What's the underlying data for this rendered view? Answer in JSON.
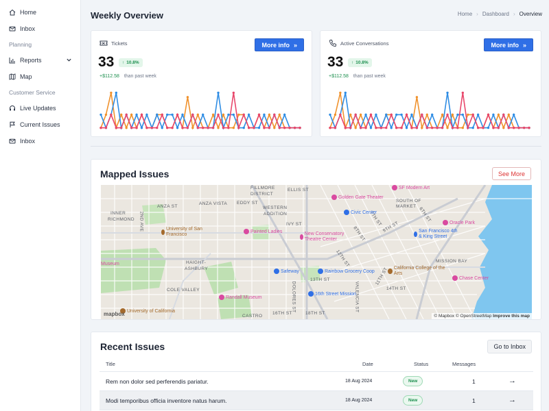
{
  "sidebar": {
    "items": [
      {
        "label": "Home",
        "icon": "home-icon"
      },
      {
        "label": "Inbox",
        "icon": "mail-icon"
      }
    ],
    "section_planning": "Planning",
    "planning_items": [
      {
        "label": "Reports",
        "icon": "chart-icon"
      },
      {
        "label": "Map",
        "icon": "map-icon"
      }
    ],
    "section_customer": "Customer Service",
    "customer_items": [
      {
        "label": "Live Updates",
        "icon": "headset-icon"
      },
      {
        "label": "Current Issues",
        "icon": "flag-icon"
      },
      {
        "label": "Inbox",
        "icon": "mail-icon"
      }
    ]
  },
  "header": {
    "title": "Weekly Overview",
    "breadcrumb": [
      "Home",
      "Dashboard",
      "Overview"
    ]
  },
  "stats": [
    {
      "label": "Tickets",
      "icon": "ticket-icon",
      "button": "More info",
      "value": "33",
      "badge": "10.8%",
      "delta": "+$112.58",
      "delta_suffix": "than past week"
    },
    {
      "label": "Active Conversations",
      "icon": "phone-icon",
      "button": "More info",
      "value": "33",
      "badge": "10.8%",
      "delta": "+$112.58",
      "delta_suffix": "than past week"
    }
  ],
  "chart_data": {
    "type": "line",
    "x": [
      1,
      2,
      3,
      4,
      5,
      6,
      7,
      8,
      9,
      10,
      11,
      12,
      13,
      14,
      15,
      16,
      17,
      18,
      19,
      20,
      21,
      22,
      23,
      24,
      25,
      26,
      27,
      28,
      29,
      30,
      31,
      32,
      33,
      34,
      35,
      36,
      37,
      38,
      39,
      40
    ],
    "ylim": [
      0,
      10
    ],
    "series": [
      {
        "color": "#f0922d",
        "values": [
          1,
          4,
          9,
          1,
          4,
          1,
          4,
          1,
          4,
          1,
          1,
          4,
          4,
          1,
          1,
          4,
          1,
          8,
          1,
          4,
          1,
          1,
          4,
          1,
          4,
          1,
          1,
          4,
          4,
          1,
          1,
          4,
          1,
          4,
          1,
          4,
          1,
          1,
          1,
          1
        ]
      },
      {
        "color": "#2f8de4",
        "values": [
          4,
          1,
          4,
          9,
          1,
          4,
          1,
          4,
          1,
          4,
          1,
          4,
          1,
          4,
          4,
          1,
          4,
          1,
          4,
          1,
          4,
          1,
          1,
          9,
          1,
          4,
          4,
          1,
          1,
          4,
          1,
          1,
          4,
          1,
          4,
          1,
          4,
          1,
          1,
          1
        ]
      },
      {
        "color": "#e8476b",
        "values": [
          1,
          1,
          4,
          1,
          1,
          4,
          1,
          1,
          4,
          1,
          1,
          1,
          4,
          1,
          1,
          4,
          1,
          1,
          4,
          1,
          1,
          1,
          1,
          4,
          1,
          1,
          9,
          1,
          4,
          1,
          1,
          4,
          1,
          1,
          4,
          1,
          1,
          1,
          1,
          1
        ]
      }
    ]
  },
  "map_card": {
    "title": "Mapped Issues",
    "button": "See More",
    "labels": [
      {
        "text": "FILLMORE"
      },
      {
        "text": "DISTRICT"
      },
      {
        "text": "ELLIS ST"
      },
      {
        "text": "ANZA ST"
      },
      {
        "text": "ANZA VISTA"
      },
      {
        "text": "EDDY ST"
      },
      {
        "text": "WESTERN"
      },
      {
        "text": "ADDITION"
      },
      {
        "text": "INNER"
      },
      {
        "text": "RICHMOND"
      },
      {
        "text": "HAIGHT-"
      },
      {
        "text": "ASHBURY"
      },
      {
        "text": "COLE VALLEY"
      },
      {
        "text": "SOUTH OF"
      },
      {
        "text": "MARKET"
      },
      {
        "text": "MISSION BAY"
      },
      {
        "text": "CASTRO"
      },
      {
        "text": "16TH ST"
      },
      {
        "text": "18TH ST"
      },
      {
        "text": "IVY ST"
      },
      {
        "text": "7TH ST"
      },
      {
        "text": "8TH ST"
      },
      {
        "text": "9TH ST"
      },
      {
        "text": "12TH ST"
      },
      {
        "text": "13TH ST"
      },
      {
        "text": "2ND AVE"
      },
      {
        "text": "DOLORES ST"
      },
      {
        "text": "VALENCIA ST"
      },
      {
        "text": "14TH ST"
      },
      {
        "text": "6TH ST"
      },
      {
        "text": "11TH ST"
      }
    ],
    "pois": [
      {
        "text": "Golden Gate Theater",
        "color": "#d94aa0"
      },
      {
        "text": "Civic Center",
        "color": "#2f6fe6"
      },
      {
        "text": "SF Modern Art",
        "color": "#d94aa0"
      },
      {
        "text": "Oracle Park",
        "color": "#d94aa0"
      },
      {
        "text": "San Francisco 4th & King Street",
        "color": "#2f6fe6"
      },
      {
        "text": "University of San Francisco",
        "color": "#a46a2c"
      },
      {
        "text": "Painted Ladies",
        "color": "#d94aa0"
      },
      {
        "text": "New Conservatory Theatre Center",
        "color": "#d94aa0"
      },
      {
        "text": "Safeway",
        "color": "#2f6fe6"
      },
      {
        "text": "Rainbow Grocery Coop",
        "color": "#2f6fe6"
      },
      {
        "text": "California College of the Arts",
        "color": "#a46a2c"
      },
      {
        "text": "Chase Center",
        "color": "#d94aa0"
      },
      {
        "text": "16th Street Mission",
        "color": "#2f6fe6"
      },
      {
        "text": "Randall Museum",
        "color": "#d94aa0"
      },
      {
        "text": "University of California",
        "color": "#a46a2c"
      },
      {
        "text": "Museum",
        "color": "#d94aa0"
      }
    ],
    "logo": "mapbox",
    "attribution": "© Mapbox © OpenStreetMap",
    "improve": "Improve this map"
  },
  "issues": {
    "title": "Recent Issues",
    "button": "Go to Inbox",
    "columns": [
      "Title",
      "Date",
      "Status",
      "Messages"
    ],
    "rows": [
      {
        "title": "Rem non dolor sed perferendis pariatur.",
        "date": "18 Aug 2024",
        "status": "New",
        "messages": "1"
      },
      {
        "title": "Modi temporibus officia inventore natus harum.",
        "date": "18 Aug 2024",
        "status": "New",
        "messages": "1"
      }
    ]
  }
}
